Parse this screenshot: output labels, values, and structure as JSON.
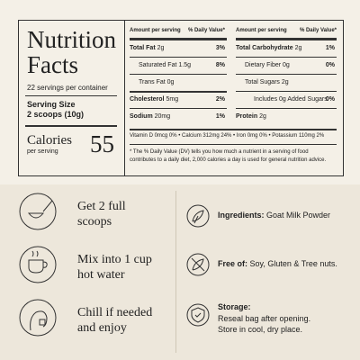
{
  "nutrition": {
    "title_line1": "Nutrition",
    "title_line2": "Facts",
    "servings": "22 servings per container",
    "serving_size_label": "Serving Size",
    "serving_size": "2 scoops (10g)",
    "calories_label": "Calories",
    "calories_sub": "per serving",
    "calories": 55,
    "header_amount": "Amount per serving",
    "header_dv": "% Daily Value*",
    "left_rows": [
      {
        "name": "Total Fat",
        "amount": "2g",
        "dv": "3%"
      },
      {
        "name": "Saturated Fat",
        "amount": "1.5g",
        "dv": "8%"
      },
      {
        "name": "Trans Fat",
        "amount": "0g"
      },
      {
        "name": "Cholesterol",
        "amount": "5mg",
        "dv": "2%"
      },
      {
        "name": "Sodium",
        "amount": "20mg",
        "dv": "1%"
      }
    ],
    "right_rows": [
      {
        "name": "Total Carbohydrate",
        "amount": "2g",
        "dv": "1%"
      },
      {
        "name": "Dietary Fiber",
        "amount": "0g",
        "dv": "0%"
      },
      {
        "name": "Total Sugars",
        "amount": "2g"
      },
      {
        "name": "Includes 0g Added Sugars",
        "dv": "0%"
      },
      {
        "name": "Protein",
        "amount": "2g"
      }
    ],
    "minerals": [
      "Vitamin D 0mcg 0%",
      "Calcium 312mg 24%",
      "Iron 0mg 0%",
      "Potassium 110mg 2%"
    ],
    "footnote": "* The % Daily Value (DV) tells you how much a nutrient in a serving of food contributes to a daily diet, 2,000 calories a day is used for general nutrition advice."
  },
  "steps": [
    {
      "line1": "Get 2 full",
      "line2": "scoops"
    },
    {
      "line1": "Mix into 1 cup",
      "line2": "hot water"
    },
    {
      "line1": "Chill if needed",
      "line2": "and enjoy"
    }
  ],
  "info": [
    {
      "label": "Ingredients:",
      "text": "Goat Milk Powder"
    },
    {
      "label": "Free of:",
      "text": "Soy, Gluten & Tree nuts."
    },
    {
      "label": "Storage:",
      "lines": [
        "Reseal bag after opening.",
        "Store in cool, dry place."
      ]
    }
  ]
}
